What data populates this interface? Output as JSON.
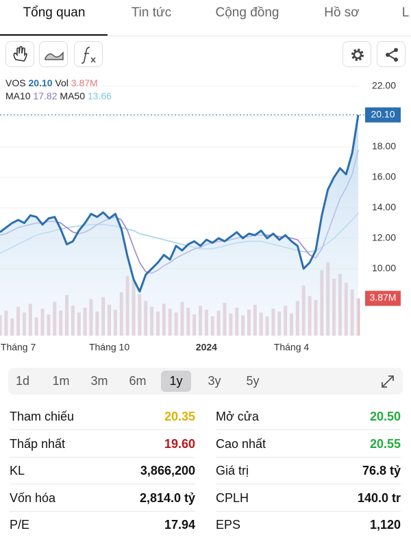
{
  "tabs": [
    "Tổng quan",
    "Tin tức",
    "Cộng đồng",
    "Hồ sơ",
    "L"
  ],
  "active_tab": 0,
  "legend": {
    "symbol": "VOS",
    "price": "20.10",
    "vol_label": "Vol",
    "vol": "3.87M",
    "ma10_label": "MA10",
    "ma10": "17.82",
    "ma50_label": "MA50",
    "ma50": "13.66"
  },
  "chart_data": {
    "type": "line",
    "categories": [
      null,
      null,
      null,
      "Tháng 7",
      null,
      null,
      null,
      null,
      null,
      null,
      null,
      null,
      null,
      null,
      null,
      null,
      null,
      null,
      "Tháng 10",
      null,
      null,
      null,
      null,
      null,
      null,
      null,
      null,
      null,
      null,
      null,
      null,
      null,
      null,
      null,
      "2024",
      null,
      null,
      null,
      null,
      null,
      null,
      null,
      null,
      null,
      null,
      null,
      null,
      null,
      "Tháng 4",
      null,
      null,
      null,
      null,
      null,
      null,
      null,
      null,
      null,
      null,
      null
    ],
    "series": [
      {
        "name": "VOS",
        "color": "#2a6fb0",
        "values": [
          12.4,
          12.7,
          13.0,
          13.2,
          13.0,
          13.5,
          13.4,
          12.9,
          13.3,
          13.4,
          12.6,
          11.6,
          11.8,
          12.5,
          13.0,
          13.6,
          13.4,
          13.7,
          13.3,
          13.6,
          12.6,
          10.8,
          9.3,
          8.5,
          9.6,
          10.0,
          10.4,
          10.9,
          10.6,
          11.5,
          11.2,
          11.6,
          11.8,
          11.5,
          11.9,
          11.7,
          12.0,
          11.8,
          12.1,
          12.4,
          12.0,
          12.3,
          12.2,
          12.5,
          12.0,
          12.3,
          11.9,
          12.2,
          11.8,
          11.5,
          10.0,
          10.4,
          11.2,
          13.5,
          15.2,
          16.0,
          16.6,
          16.2,
          17.6,
          20.1
        ]
      },
      {
        "name": "MA10",
        "color": "#9a86c8",
        "values": [
          12.2,
          12.3,
          12.5,
          12.7,
          12.8,
          12.9,
          13.0,
          13.0,
          13.1,
          13.1,
          13.0,
          12.7,
          12.4,
          12.3,
          12.4,
          12.6,
          12.9,
          13.1,
          13.3,
          13.4,
          13.2,
          12.5,
          11.4,
          10.4,
          9.8,
          9.7,
          9.9,
          10.2,
          10.4,
          10.7,
          10.9,
          11.1,
          11.3,
          11.4,
          11.6,
          11.7,
          11.8,
          11.8,
          11.9,
          12.0,
          12.1,
          12.1,
          12.2,
          12.2,
          12.2,
          12.2,
          12.1,
          12.1,
          12.0,
          11.9,
          11.4,
          10.9,
          10.7,
          11.3,
          12.4,
          13.5,
          14.6,
          15.3,
          16.2,
          17.8
        ]
      },
      {
        "name": "MA50",
        "color": "#9fd3ee",
        "values": [
          11.0,
          11.2,
          11.4,
          11.6,
          11.8,
          12.0,
          12.2,
          12.3,
          12.4,
          12.5,
          12.6,
          12.7,
          12.75,
          12.8,
          12.85,
          12.9,
          12.9,
          12.9,
          12.85,
          12.8,
          12.7,
          12.6,
          12.5,
          12.3,
          12.2,
          12.1,
          12.0,
          11.9,
          11.8,
          11.7,
          11.6,
          11.5,
          11.4,
          11.3,
          11.3,
          11.3,
          11.4,
          11.5,
          11.6,
          11.7,
          11.75,
          11.8,
          11.8,
          11.8,
          11.7,
          11.6,
          11.5,
          11.4,
          11.3,
          11.2,
          11.1,
          11.1,
          11.2,
          11.4,
          11.7,
          12.0,
          12.4,
          12.8,
          13.2,
          13.66
        ]
      },
      {
        "name": "Vol",
        "color": "#e3c4c8",
        "axis": "y2",
        "values": [
          2100000,
          2600000,
          1800000,
          3000000,
          2400000,
          3300000,
          1900000,
          2800000,
          2200000,
          3500000,
          2600000,
          4200000,
          3100000,
          2400000,
          2900000,
          3800000,
          2500000,
          4000000,
          3200000,
          2700000,
          4500000,
          6200000,
          5800000,
          4300000,
          3600000,
          3000000,
          2500000,
          3300000,
          2800000,
          2400000,
          3500000,
          2900000,
          2200000,
          3100000,
          2700000,
          2000000,
          2600000,
          3400000,
          2300000,
          2900000,
          2100000,
          2700000,
          3200000,
          2400000,
          2000000,
          2800000,
          2500000,
          3100000,
          2300000,
          3600000,
          5200000,
          4100000,
          3700000,
          6800000,
          7600000,
          5900000,
          6400000,
          5500000,
          4800000,
          3870000
        ]
      }
    ],
    "ylim": [
      5.6,
      22.7
    ],
    "yticks": [
      {
        "value": 10,
        "label": "10.00"
      },
      {
        "value": 12,
        "label": "12.00"
      },
      {
        "value": 14,
        "label": "14.00"
      },
      {
        "value": 16,
        "label": "16.00"
      },
      {
        "value": 18,
        "label": "18.00"
      },
      {
        "value": 20,
        "label": "20.00"
      },
      {
        "value": 22,
        "label": "22.00"
      }
    ],
    "y2lim": [
      0,
      27000000
    ],
    "grid": true
  },
  "ranges": [
    "1d",
    "1m",
    "3m",
    "6m",
    "1y",
    "3y",
    "5y"
  ],
  "active_range": 4,
  "stats": [
    [
      {
        "label": "Tham chiếu",
        "value": "20.35",
        "color": "#e0b000"
      },
      {
        "label": "Mở cửa",
        "value": "20.50",
        "color": "#1fae3a"
      }
    ],
    [
      {
        "label": "Thấp nhất",
        "value": "19.60",
        "color": "#c0141c"
      },
      {
        "label": "Cao nhất",
        "value": "20.55",
        "color": "#1fae3a"
      }
    ],
    [
      {
        "label": "KL",
        "value": "3,866,200"
      },
      {
        "label": "Giá trị",
        "value": "76.8 tỷ"
      }
    ],
    [
      {
        "label": "Vốn hóa",
        "value": "2,814.0 tỷ"
      },
      {
        "label": "CPLH",
        "value": "140.0 tr"
      }
    ],
    [
      {
        "label": "P/E",
        "value": "17.94"
      },
      {
        "label": "EPS",
        "value": "1,120"
      }
    ]
  ]
}
